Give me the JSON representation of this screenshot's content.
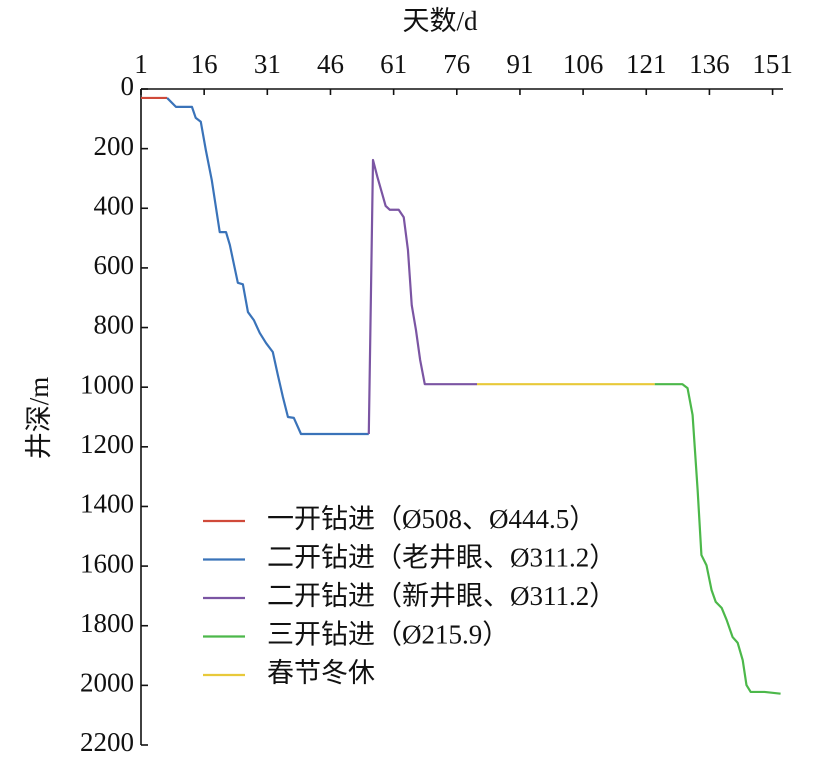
{
  "chart_data": {
    "type": "line",
    "x_label": "天数/d",
    "y_label": "井深/m",
    "xlim": [
      1,
      153
    ],
    "ylim": [
      0,
      2200
    ],
    "y_inverted": true,
    "x_axis_position": "top",
    "xticks": [
      1,
      16,
      31,
      46,
      61,
      76,
      91,
      106,
      121,
      136,
      151
    ],
    "yticks": [
      0,
      200,
      400,
      600,
      800,
      1000,
      1200,
      1400,
      1600,
      1800,
      2000,
      2200
    ],
    "legend_position": "lower left",
    "series": [
      {
        "name": "一开钻进（Ø508、Ø444.5）",
        "color": "#d04a3a",
        "x": [
          1,
          7.2
        ],
        "values": [
          30,
          30
        ]
      },
      {
        "name": "二开钻进（老井眼、Ø311.2）",
        "color": "#3a73b9",
        "x": [
          7.2,
          9.3,
          13.1,
          14,
          15.2,
          16.4,
          17.8,
          19.7,
          21.2,
          22.1,
          23.1,
          24,
          25.2,
          26.4,
          27.8,
          29.2,
          30.7,
          32.3,
          33.5,
          34.7,
          35.9,
          37.3,
          39,
          55.1
        ],
        "values": [
          30,
          60,
          60,
          97,
          110,
          205,
          305,
          480,
          480,
          523,
          590,
          650,
          655,
          748,
          775,
          818,
          852,
          882,
          959,
          1033,
          1100,
          1103,
          1157,
          1157
        ]
      },
      {
        "name": "二开钻进（新井眼、Ø311.2）",
        "color": "#7b55a3",
        "x": [
          55.1,
          56.1,
          57.2,
          59.1,
          60.1,
          62.2,
          63.4,
          64.4,
          65.3,
          66.3,
          67.3,
          68.4,
          80.8
        ],
        "values": [
          1157,
          238,
          298,
          392,
          405,
          405,
          430,
          540,
          725,
          808,
          909,
          990,
          990
        ]
      },
      {
        "name": "三开钻进（Ø215.9）",
        "color": "#4cb84a",
        "x": [
          123,
          129.6,
          130.8,
          132,
          133.2,
          134.1,
          135.3,
          136.5,
          137.5,
          138.9,
          140.1,
          141.5,
          142.7,
          143.9,
          144.8,
          145.8,
          149.1,
          152.9
        ],
        "values": [
          990,
          990,
          1003,
          1093,
          1345,
          1563,
          1597,
          1680,
          1720,
          1740,
          1781,
          1838,
          1857,
          1915,
          1999,
          2022,
          2022,
          2028
        ]
      },
      {
        "name": "春节冬休",
        "color": "#e8c93a",
        "x": [
          80.8,
          123
        ],
        "values": [
          990,
          990
        ]
      }
    ]
  }
}
